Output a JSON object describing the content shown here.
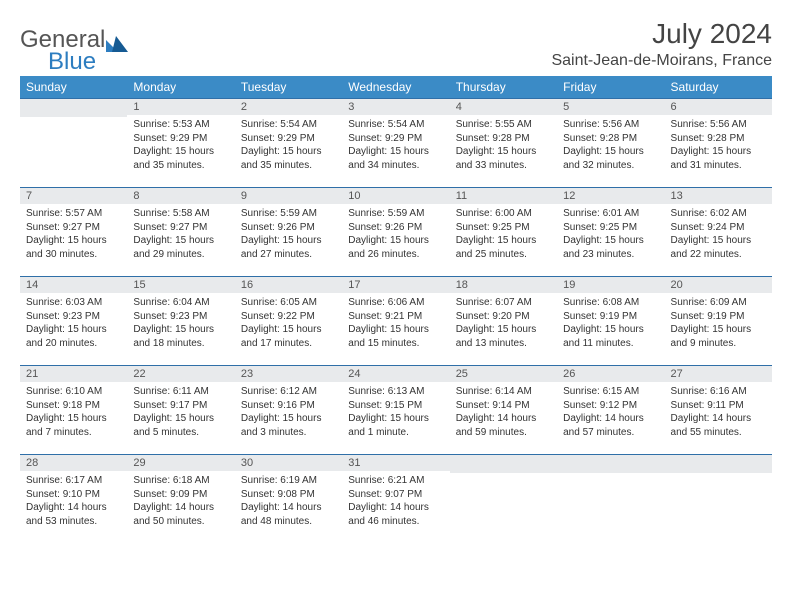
{
  "brand": {
    "general": "General",
    "blue": "Blue"
  },
  "title": "July 2024",
  "location": "Saint-Jean-de-Moirans, France",
  "colors": {
    "header_blue": "#3b8bc6",
    "accent_blue": "#2f6fa8",
    "date_label_bg": "#e8eaec",
    "date_label_color": "#555555",
    "body_color": "#333333"
  },
  "weekday_headers": [
    "Sunday",
    "Monday",
    "Tuesday",
    "Wednesday",
    "Thursday",
    "Friday",
    "Saturday"
  ],
  "weeks": [
    [
      null,
      {
        "date": "1",
        "sunrise": "Sunrise: 5:53 AM",
        "sunset": "Sunset: 9:29 PM",
        "daylight": "Daylight: 15 hours and 35 minutes."
      },
      {
        "date": "2",
        "sunrise": "Sunrise: 5:54 AM",
        "sunset": "Sunset: 9:29 PM",
        "daylight": "Daylight: 15 hours and 35 minutes."
      },
      {
        "date": "3",
        "sunrise": "Sunrise: 5:54 AM",
        "sunset": "Sunset: 9:29 PM",
        "daylight": "Daylight: 15 hours and 34 minutes."
      },
      {
        "date": "4",
        "sunrise": "Sunrise: 5:55 AM",
        "sunset": "Sunset: 9:28 PM",
        "daylight": "Daylight: 15 hours and 33 minutes."
      },
      {
        "date": "5",
        "sunrise": "Sunrise: 5:56 AM",
        "sunset": "Sunset: 9:28 PM",
        "daylight": "Daylight: 15 hours and 32 minutes."
      },
      {
        "date": "6",
        "sunrise": "Sunrise: 5:56 AM",
        "sunset": "Sunset: 9:28 PM",
        "daylight": "Daylight: 15 hours and 31 minutes."
      }
    ],
    [
      {
        "date": "7",
        "sunrise": "Sunrise: 5:57 AM",
        "sunset": "Sunset: 9:27 PM",
        "daylight": "Daylight: 15 hours and 30 minutes."
      },
      {
        "date": "8",
        "sunrise": "Sunrise: 5:58 AM",
        "sunset": "Sunset: 9:27 PM",
        "daylight": "Daylight: 15 hours and 29 minutes."
      },
      {
        "date": "9",
        "sunrise": "Sunrise: 5:59 AM",
        "sunset": "Sunset: 9:26 PM",
        "daylight": "Daylight: 15 hours and 27 minutes."
      },
      {
        "date": "10",
        "sunrise": "Sunrise: 5:59 AM",
        "sunset": "Sunset: 9:26 PM",
        "daylight": "Daylight: 15 hours and 26 minutes."
      },
      {
        "date": "11",
        "sunrise": "Sunrise: 6:00 AM",
        "sunset": "Sunset: 9:25 PM",
        "daylight": "Daylight: 15 hours and 25 minutes."
      },
      {
        "date": "12",
        "sunrise": "Sunrise: 6:01 AM",
        "sunset": "Sunset: 9:25 PM",
        "daylight": "Daylight: 15 hours and 23 minutes."
      },
      {
        "date": "13",
        "sunrise": "Sunrise: 6:02 AM",
        "sunset": "Sunset: 9:24 PM",
        "daylight": "Daylight: 15 hours and 22 minutes."
      }
    ],
    [
      {
        "date": "14",
        "sunrise": "Sunrise: 6:03 AM",
        "sunset": "Sunset: 9:23 PM",
        "daylight": "Daylight: 15 hours and 20 minutes."
      },
      {
        "date": "15",
        "sunrise": "Sunrise: 6:04 AM",
        "sunset": "Sunset: 9:23 PM",
        "daylight": "Daylight: 15 hours and 18 minutes."
      },
      {
        "date": "16",
        "sunrise": "Sunrise: 6:05 AM",
        "sunset": "Sunset: 9:22 PM",
        "daylight": "Daylight: 15 hours and 17 minutes."
      },
      {
        "date": "17",
        "sunrise": "Sunrise: 6:06 AM",
        "sunset": "Sunset: 9:21 PM",
        "daylight": "Daylight: 15 hours and 15 minutes."
      },
      {
        "date": "18",
        "sunrise": "Sunrise: 6:07 AM",
        "sunset": "Sunset: 9:20 PM",
        "daylight": "Daylight: 15 hours and 13 minutes."
      },
      {
        "date": "19",
        "sunrise": "Sunrise: 6:08 AM",
        "sunset": "Sunset: 9:19 PM",
        "daylight": "Daylight: 15 hours and 11 minutes."
      },
      {
        "date": "20",
        "sunrise": "Sunrise: 6:09 AM",
        "sunset": "Sunset: 9:19 PM",
        "daylight": "Daylight: 15 hours and 9 minutes."
      }
    ],
    [
      {
        "date": "21",
        "sunrise": "Sunrise: 6:10 AM",
        "sunset": "Sunset: 9:18 PM",
        "daylight": "Daylight: 15 hours and 7 minutes."
      },
      {
        "date": "22",
        "sunrise": "Sunrise: 6:11 AM",
        "sunset": "Sunset: 9:17 PM",
        "daylight": "Daylight: 15 hours and 5 minutes."
      },
      {
        "date": "23",
        "sunrise": "Sunrise: 6:12 AM",
        "sunset": "Sunset: 9:16 PM",
        "daylight": "Daylight: 15 hours and 3 minutes."
      },
      {
        "date": "24",
        "sunrise": "Sunrise: 6:13 AM",
        "sunset": "Sunset: 9:15 PM",
        "daylight": "Daylight: 15 hours and 1 minute."
      },
      {
        "date": "25",
        "sunrise": "Sunrise: 6:14 AM",
        "sunset": "Sunset: 9:14 PM",
        "daylight": "Daylight: 14 hours and 59 minutes."
      },
      {
        "date": "26",
        "sunrise": "Sunrise: 6:15 AM",
        "sunset": "Sunset: 9:12 PM",
        "daylight": "Daylight: 14 hours and 57 minutes."
      },
      {
        "date": "27",
        "sunrise": "Sunrise: 6:16 AM",
        "sunset": "Sunset: 9:11 PM",
        "daylight": "Daylight: 14 hours and 55 minutes."
      }
    ],
    [
      {
        "date": "28",
        "sunrise": "Sunrise: 6:17 AM",
        "sunset": "Sunset: 9:10 PM",
        "daylight": "Daylight: 14 hours and 53 minutes."
      },
      {
        "date": "29",
        "sunrise": "Sunrise: 6:18 AM",
        "sunset": "Sunset: 9:09 PM",
        "daylight": "Daylight: 14 hours and 50 minutes."
      },
      {
        "date": "30",
        "sunrise": "Sunrise: 6:19 AM",
        "sunset": "Sunset: 9:08 PM",
        "daylight": "Daylight: 14 hours and 48 minutes."
      },
      {
        "date": "31",
        "sunrise": "Sunrise: 6:21 AM",
        "sunset": "Sunset: 9:07 PM",
        "daylight": "Daylight: 14 hours and 46 minutes."
      },
      null,
      null,
      null
    ]
  ]
}
